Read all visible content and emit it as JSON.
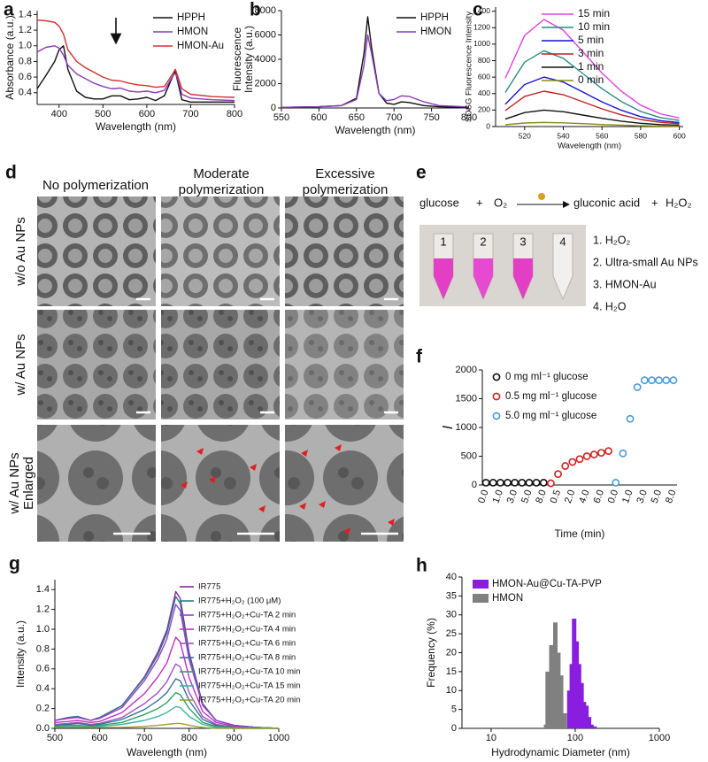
{
  "chart_data": [
    {
      "panel": "a",
      "type": "line",
      "x": [
        350,
        370,
        390,
        400,
        410,
        420,
        440,
        460,
        480,
        500,
        520,
        540,
        560,
        580,
        600,
        620,
        640,
        660,
        665,
        670,
        680,
        700,
        750,
        800
      ],
      "xlim": [
        350,
        800
      ],
      "xticks": [
        400,
        500,
        600,
        700,
        800
      ],
      "ylim": [
        0.25,
        1.45
      ],
      "yticks": [
        0.4,
        0.6,
        0.8,
        {
          "value": 1,
          "label": "1.0"
        },
        1.2,
        1.4
      ],
      "xlabel": "Wavelength (nm)",
      "ylabel": [
        "Absorbance (a.u.)"
      ],
      "legend": "upper right",
      "series": [
        {
          "name": "HPPH",
          "color": "#111111",
          "values": [
            0.45,
            0.62,
            0.8,
            0.95,
            1.0,
            0.7,
            0.42,
            0.34,
            0.32,
            0.32,
            0.36,
            0.36,
            0.31,
            0.32,
            0.34,
            0.3,
            0.36,
            0.62,
            0.67,
            0.55,
            0.31,
            0.28,
            0.28,
            0.28
          ]
        },
        {
          "name": "HMON",
          "color": "#8a3ab9",
          "values": [
            0.92,
            0.98,
            1.0,
            0.97,
            0.88,
            0.75,
            0.64,
            0.58,
            0.52,
            0.48,
            0.45,
            0.46,
            0.42,
            0.41,
            0.42,
            0.4,
            0.43,
            0.62,
            0.65,
            0.58,
            0.38,
            0.33,
            0.31,
            0.3
          ]
        },
        {
          "name": "HMON-Au",
          "color": "#d03030",
          "values": [
            1.33,
            1.32,
            1.3,
            1.25,
            1.15,
            0.95,
            0.8,
            0.72,
            0.66,
            0.6,
            0.56,
            0.55,
            0.52,
            0.5,
            0.49,
            0.47,
            0.48,
            0.65,
            0.7,
            0.62,
            0.45,
            0.38,
            0.35,
            0.34
          ]
        }
      ]
    },
    {
      "panel": "b",
      "type": "line",
      "x": [
        550,
        600,
        630,
        650,
        660,
        665,
        670,
        680,
        690,
        700,
        710,
        720,
        740,
        760,
        800
      ],
      "xlim": [
        550,
        800
      ],
      "xticks": [
        550,
        600,
        650,
        700,
        750,
        800
      ],
      "ylim": [
        0,
        8000
      ],
      "yticks": [
        0,
        2000,
        4000,
        6000,
        8000
      ],
      "xlabel": "Wavelength (nm)",
      "ylabel": [
        "Fluorescence",
        "Intensity (a.u.)"
      ],
      "legend": "upper right",
      "series": [
        {
          "name": "HPPH",
          "color": "#111111",
          "values": [
            50,
            100,
            200,
            800,
            4500,
            7500,
            5000,
            1200,
            400,
            300,
            500,
            450,
            200,
            100,
            50
          ]
        },
        {
          "name": "HMON",
          "color": "#8a3ab9",
          "values": [
            50,
            100,
            200,
            700,
            3500,
            6000,
            4500,
            1200,
            600,
            700,
            1000,
            950,
            500,
            200,
            80
          ]
        }
      ]
    },
    {
      "panel": "c",
      "type": "line",
      "x": [
        510,
        520,
        530,
        540,
        550,
        560,
        570,
        580,
        590,
        600
      ],
      "xlim": [
        505,
        602
      ],
      "xticks": [
        520,
        540,
        560,
        580,
        600
      ],
      "ylim": [
        0,
        1450
      ],
      "yticks": [
        0,
        200,
        400,
        600,
        800,
        1000,
        1200,
        1400
      ],
      "xlabel": "Wavelength (nm)",
      "ylabel": [
        "SOSG Fluorescence Intensity"
      ],
      "legend": "upper right",
      "series": [
        {
          "name": "15 min",
          "color": "#e040e0",
          "values": [
            585,
            1105,
            1300,
            1170,
            910,
            650,
            429,
            260,
            156,
            104
          ]
        },
        {
          "name": "10 min",
          "color": "#2a8a8a",
          "values": [
            414,
            782,
            920,
            828,
            644,
            460,
            304,
            184,
            110,
            74
          ]
        },
        {
          "name": "5 min",
          "color": "#1515d0",
          "values": [
            270,
            510,
            600,
            540,
            420,
            300,
            198,
            120,
            72,
            48
          ]
        },
        {
          "name": "3 min",
          "color": "#c02020",
          "values": [
            194,
            366,
            430,
            387,
            301,
            215,
            142,
            86,
            52,
            34
          ]
        },
        {
          "name": "1 min",
          "color": "#111111",
          "values": [
            90,
            170,
            200,
            180,
            140,
            100,
            66,
            40,
            24,
            16
          ]
        },
        {
          "name": "0 min",
          "color": "#8a8a10",
          "values": [
            23,
            43,
            50,
            45,
            35,
            25,
            17,
            10,
            6,
            4
          ]
        }
      ]
    },
    {
      "panel": "f",
      "type": "scatter",
      "categories": [
        "0.0",
        null,
        "1.0",
        null,
        "3.0",
        null,
        "5.0",
        null,
        "8.0",
        null,
        "0.5",
        null,
        "2.0",
        null,
        "4.0",
        null,
        "6.0",
        null,
        "0.0",
        null,
        "1.0",
        null,
        "3.0",
        null,
        "5.0",
        null,
        "8.0"
      ],
      "ylim": [
        0,
        2000
      ],
      "yticks": [
        0,
        500,
        1000,
        1500,
        2000
      ],
      "xlabel": "Time (min)",
      "ylabel": [
        "I"
      ],
      "legend": "upper left",
      "series": [
        {
          "name": "0 mg ml⁻¹ glucose",
          "color": "#111111",
          "values": [
            40,
            40,
            40,
            40,
            40,
            40,
            40,
            40,
            40,
            null,
            null,
            null,
            null,
            null,
            null,
            null,
            null,
            null,
            null,
            null,
            null,
            null,
            null,
            null,
            null,
            null,
            null
          ]
        },
        {
          "name": "0.5 mg ml⁻¹ glucose",
          "color": "#d02020",
          "values": [
            null,
            null,
            null,
            null,
            null,
            null,
            null,
            null,
            null,
            30,
            190,
            330,
            400,
            450,
            500,
            530,
            560,
            590,
            null,
            null,
            null,
            null,
            null,
            null,
            null,
            null,
            null
          ]
        },
        {
          "name": "5.0 mg ml⁻¹ glucose",
          "color": "#4a9ad8",
          "values": [
            null,
            null,
            null,
            null,
            null,
            null,
            null,
            null,
            null,
            null,
            null,
            null,
            null,
            null,
            null,
            null,
            null,
            null,
            40,
            550,
            1150,
            1700,
            1820,
            1820,
            1820,
            1820,
            1820
          ]
        }
      ]
    },
    {
      "panel": "g",
      "type": "line",
      "x": [
        500,
        530,
        550,
        580,
        600,
        650,
        700,
        730,
        750,
        770,
        780,
        800,
        830,
        860,
        900,
        950,
        1000
      ],
      "xlim": [
        500,
        1000
      ],
      "xticks": [
        500,
        600,
        700,
        800,
        900,
        1000
      ],
      "ylim": [
        0,
        1.5
      ],
      "yticks": [
        {
          "value": 0,
          "label": "0.0"
        },
        0.2,
        0.4,
        0.6,
        0.8,
        {
          "value": 1,
          "label": "1.0"
        },
        1.2,
        1.4
      ],
      "xlabel": "Wavelength (nm)",
      "ylabel": [
        "Intensity (a.u.)"
      ],
      "legend": "upper right",
      "series": [
        {
          "name": "IR775",
          "color": "#8a2a9a",
          "values": [
            0.08,
            0.11,
            0.12,
            0.08,
            0.11,
            0.23,
            0.52,
            0.77,
            0.99,
            1.38,
            1.31,
            0.76,
            0.25,
            0.08,
            0.03,
            0.01,
            0
          ]
        },
        {
          "name": "IR775+H₂O₂ (100 μM)",
          "color": "#2a7a8a",
          "values": [
            0.08,
            0.11,
            0.12,
            0.08,
            0.11,
            0.23,
            0.51,
            0.74,
            0.96,
            1.33,
            1.26,
            0.73,
            0.24,
            0.08,
            0.03,
            0.01,
            0
          ]
        },
        {
          "name": "IR775+H₂O₂+Cu-TA 2 min",
          "color": "#9a40d0",
          "values": [
            0.08,
            0.1,
            0.11,
            0.08,
            0.1,
            0.21,
            0.48,
            0.7,
            0.9,
            1.25,
            1.19,
            0.69,
            0.23,
            0.08,
            0.03,
            0.01,
            0
          ]
        },
        {
          "name": "IR775+H₂O₂+Cu-TA 4 min",
          "color": "#c030c0",
          "values": [
            0.06,
            0.07,
            0.08,
            0.06,
            0.07,
            0.16,
            0.35,
            0.52,
            0.66,
            0.92,
            0.87,
            0.51,
            0.17,
            0.06,
            0.02,
            0.01,
            0
          ]
        },
        {
          "name": "IR775+H₂O₂+Cu-TA 6 min",
          "color": "#a050c0",
          "values": [
            0.04,
            0.05,
            0.06,
            0.04,
            0.05,
            0.11,
            0.25,
            0.36,
            0.47,
            0.65,
            0.62,
            0.36,
            0.12,
            0.04,
            0.01,
            0.01,
            0
          ]
        },
        {
          "name": "IR775+H₂O₂+Cu-TA 8 min",
          "color": "#3a70a0",
          "values": [
            0.03,
            0.04,
            0.05,
            0.03,
            0.04,
            0.09,
            0.19,
            0.28,
            0.36,
            0.5,
            0.48,
            0.28,
            0.09,
            0.03,
            0.01,
            0.01,
            0
          ]
        },
        {
          "name": "IR775+H₂O₂+Cu-TA 10 min",
          "color": "#30a060",
          "values": [
            0.02,
            0.03,
            0.03,
            0.02,
            0.03,
            0.06,
            0.14,
            0.2,
            0.26,
            0.36,
            0.34,
            0.2,
            0.06,
            0.02,
            0.01,
            0,
            0
          ]
        },
        {
          "name": "IR775+H₂O₂+Cu-TA 15 min",
          "color": "#40b0a0",
          "values": [
            0.01,
            0.02,
            0.02,
            0.01,
            0.02,
            0.04,
            0.08,
            0.12,
            0.16,
            0.22,
            0.21,
            0.12,
            0.04,
            0.01,
            0,
            0,
            0
          ]
        },
        {
          "name": "IR775+H₂O₂+Cu-TA 20 min",
          "color": "#a0a030",
          "values": [
            0.01,
            0.01,
            0.01,
            0.01,
            0.01,
            0.01,
            0.02,
            0.03,
            0.04,
            0.05,
            0.05,
            0.03,
            0.01,
            0,
            0,
            0,
            0
          ]
        }
      ]
    },
    {
      "panel": "h",
      "type": "bar",
      "xscale": "log",
      "xlim": [
        4.5,
        1000
      ],
      "xticks": [
        10,
        100,
        1000
      ],
      "ylim": [
        0,
        40
      ],
      "yticks": [
        0,
        5,
        10,
        15,
        20,
        25,
        30,
        35,
        40
      ],
      "xlabel": "Hydrodynamic Diameter (nm)",
      "ylabel": [
        "Frequency (%)"
      ],
      "legend": "upper left",
      "series": [
        {
          "name": "HMON-Au@Cu-TA-PVP",
          "color": "#8a1ee0",
          "x": [
            85,
            91,
            97,
            104,
            111,
            119,
            127,
            136,
            146,
            156,
            170
          ],
          "values": [
            10,
            17,
            29,
            23,
            17,
            12,
            7,
            6,
            3,
            1,
            0.5
          ]
        },
        {
          "name": "HMON",
          "color": "#808080",
          "x": [
            45,
            47,
            52,
            58,
            63,
            68,
            75
          ],
          "values": [
            1,
            15,
            22,
            28,
            20,
            14,
            4
          ]
        }
      ]
    }
  ],
  "panel_d": {
    "panel": "d",
    "columns": [
      [
        "No polymerization"
      ],
      [
        "Moderate",
        "polymerization"
      ],
      [
        "Excessive",
        "polymerization"
      ]
    ],
    "rows": [
      [
        "w/o Au NPs"
      ],
      [
        "w/ Au NPs"
      ],
      [
        "w/ Au NPs",
        "Enlarged"
      ]
    ]
  },
  "panel_e": {
    "panel": "e",
    "equation": {
      "reactant1": "glucose",
      "plus1": "+",
      "reactant2": "O₂",
      "product1": "gluconic acid",
      "plus2": "+",
      "product2": "H₂O₂"
    },
    "tubes": [
      "1",
      "2",
      "3",
      "4"
    ],
    "legend": [
      "1. H₂O₂",
      "2. Ultra-small Au NPs",
      "3. HMON-Au",
      "4. H₂O"
    ]
  }
}
